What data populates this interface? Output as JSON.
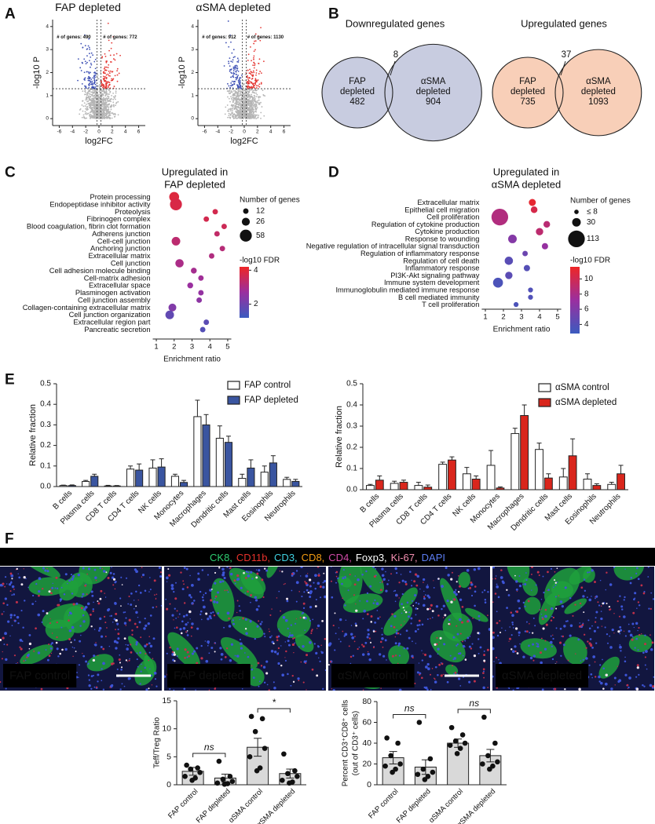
{
  "panel_labels": [
    "A",
    "B",
    "C",
    "D",
    "E",
    "F"
  ],
  "chart_data": [
    {
      "type": "volcano",
      "title": "FAP depleted",
      "xlabel": "log2FC",
      "ylabel": "-log10 P",
      "xlim": [
        -7,
        7
      ],
      "xticks": [
        -6,
        -4,
        -2,
        0,
        2,
        4,
        6
      ],
      "ylim": [
        -0.3,
        4.3
      ],
      "yticks": [
        0,
        1,
        2,
        3,
        4
      ],
      "x_thresholds": [
        -0.3,
        0.3
      ],
      "y_threshold": 1.3,
      "annotations": [
        "# of genes: 490",
        "# of genes: 772"
      ],
      "colors": {
        "down": "#3f51b5",
        "up": "#e53935",
        "unchanged": "#b5b5b5"
      }
    },
    {
      "type": "volcano",
      "title": "αSMA depleted",
      "xlabel": "log2FC",
      "ylabel": "-log10 P",
      "xlim": [
        -7,
        7
      ],
      "xticks": [
        -6,
        -4,
        -2,
        0,
        2,
        4,
        6
      ],
      "ylim": [
        -0.3,
        4.3
      ],
      "yticks": [
        0,
        1,
        2,
        3,
        4
      ],
      "x_thresholds": [
        -0.3,
        0.3
      ],
      "y_threshold": 1.3,
      "annotations": [
        "# of genes: 912",
        "# of genes: 1130"
      ],
      "colors": {
        "down": "#3f51b5",
        "up": "#e53935",
        "unchanged": "#b5b5b5"
      }
    },
    {
      "type": "venn",
      "title": "Downregulated genes",
      "sets": [
        {
          "name_lines": [
            "FAP",
            "depleted"
          ],
          "value": 482
        },
        {
          "name_lines": [
            "αSMA",
            "depleted"
          ],
          "value": 904
        }
      ],
      "overlap": 8,
      "color": "#c8cce0"
    },
    {
      "type": "venn",
      "title": "Upregulated genes",
      "sets": [
        {
          "name_lines": [
            "FAP",
            "depleted"
          ],
          "value": 735
        },
        {
          "name_lines": [
            "αSMA",
            "depleted"
          ],
          "value": 1093
        }
      ],
      "overlap": 37,
      "color": "#f8cfb8"
    },
    {
      "type": "bubble",
      "title_lines": [
        "Upregulated in",
        "FAP depleted"
      ],
      "categories": [
        "Protein processing",
        "Endopeptidase inhibitor activity",
        "Proteolysis",
        "Fibrinogen complex",
        "Blood coagulation, fibrin clot formation",
        "Adherens junction",
        "Cell-cell junction",
        "Anchoring junction",
        "Extracellular matrix",
        "Cell junction",
        "Cell adhesion molecule binding",
        "Cell-matrix adhesion",
        "Extracellular space",
        "Plasminogen activation",
        "Cell junction assembly",
        "Collagen-containing extracellular matrix",
        "Cell junction organization",
        "Extracellular region part",
        "Pancreatic secretion"
      ],
      "x": [
        2.0,
        2.1,
        4.3,
        3.8,
        4.8,
        4.4,
        2.1,
        4.7,
        4.1,
        2.3,
        3.1,
        3.5,
        2.9,
        3.5,
        3.4,
        1.9,
        1.75,
        3.8,
        3.6
      ],
      "sizes": [
        40,
        58,
        12,
        12,
        12,
        12,
        30,
        12,
        12,
        28,
        14,
        12,
        14,
        12,
        12,
        25,
        30,
        12,
        12
      ],
      "fdr": [
        3.9,
        3.8,
        3.7,
        3.7,
        3.6,
        3.4,
        3.3,
        3.2,
        3.1,
        3.0,
        2.9,
        2.8,
        2.7,
        2.6,
        2.5,
        2.3,
        1.8,
        1.7,
        1.6
      ],
      "xlabel": "Enrichment ratio",
      "xlim": [
        0.8,
        5.2
      ],
      "xticks": [
        1,
        2,
        3,
        4,
        5
      ],
      "size_legend": {
        "title": "Number of genes",
        "ticks": [
          12,
          26,
          58
        ]
      },
      "color_legend": {
        "title": "-log10 FDR",
        "lim": [
          1.2,
          4.2
        ],
        "ticks": [
          2,
          4
        ]
      },
      "colormap": [
        "#3b5bbf",
        "#9a2f9f",
        "#ee2626"
      ]
    },
    {
      "type": "bubble",
      "title_lines": [
        "Upregulated in",
        "αSMA depleted"
      ],
      "categories": [
        "Extracellular matrix",
        "Epithelial cell migration",
        "Cell proliferation",
        "Regulation of cytokine production",
        "Cytokine production",
        "Response to wounding",
        "Negative regulation of intracellular signal transduction",
        "Regulation of inflammatory response",
        "Regulation of cell death",
        "Inflammatory response",
        "PI3K-Akt signaling pathway",
        "Immune system development",
        "Immunoglobulin mediated immune response",
        "B cell mediated immunity",
        "T cell proliferation"
      ],
      "x": [
        3.6,
        3.7,
        1.8,
        4.4,
        4.0,
        2.5,
        4.3,
        3.2,
        2.3,
        3.3,
        2.3,
        1.7,
        3.5,
        3.5,
        2.7
      ],
      "sizes": [
        20,
        18,
        113,
        18,
        22,
        30,
        16,
        12,
        28,
        16,
        22,
        40,
        10,
        10,
        10
      ],
      "fdr": [
        11.2,
        10.3,
        8.4,
        8.8,
        9.0,
        6.2,
        7.0,
        5.0,
        4.2,
        4.0,
        4.3,
        3.6,
        3.8,
        3.8,
        3.6
      ],
      "xlabel": "Enrichment ratio",
      "xlim": [
        0.8,
        5.2
      ],
      "xticks": [
        1,
        2,
        3,
        4,
        5
      ],
      "size_legend": {
        "title": "Number of genes",
        "ticks": [
          {
            "value": 8,
            "label": "≤ 8"
          },
          30,
          113
        ]
      },
      "color_legend": {
        "title": "-log10 FDR",
        "lim": [
          2.8,
          11.6
        ],
        "ticks": [
          4,
          6,
          8,
          10
        ]
      },
      "colormap": [
        "#3b5bbf",
        "#9a2f9f",
        "#ee2626"
      ]
    },
    {
      "type": "bar",
      "ylabel": "Relative fraction",
      "categories": [
        "B cells",
        "Plasma cells",
        "CD8 T cells",
        "CD4 T cells",
        "NK cells",
        "Monocytes",
        "Macrophages",
        "Dendritic cells",
        "Mast cells",
        "Eosinophils",
        "Neutrophils"
      ],
      "ylim": [
        0,
        0.5
      ],
      "yticks": [
        {
          "value": 0,
          "label": "0.0"
        },
        0.1,
        0.2,
        0.3,
        0.4,
        0.5
      ],
      "legend": "upper right",
      "series": [
        {
          "name": "FAP control",
          "color": "#ffffff",
          "values": [
            0.005,
            0.025,
            0.003,
            0.085,
            0.09,
            0.05,
            0.34,
            0.235,
            0.04,
            0.07,
            0.035
          ],
          "errors": [
            0.002,
            0.005,
            0.003,
            0.015,
            0.04,
            0.01,
            0.08,
            0.06,
            0.02,
            0.03,
            0.01
          ]
        },
        {
          "name": "FAP depleted",
          "color": "#3a55a0",
          "values": [
            0.005,
            0.05,
            0.003,
            0.08,
            0.095,
            0.02,
            0.3,
            0.215,
            0.09,
            0.115,
            0.025
          ],
          "errors": [
            0.003,
            0.01,
            0.002,
            0.03,
            0.04,
            0.01,
            0.05,
            0.03,
            0.04,
            0.035,
            0.01
          ]
        }
      ]
    },
    {
      "type": "bar",
      "ylabel": "Relative fraction",
      "categories": [
        "B cells",
        "Plasma cells",
        "CD8 T cells",
        "CD4 T cells",
        "NK cells",
        "Monocytes",
        "Macrophages",
        "Dendritic cells",
        "Mast cells",
        "Eosinophils",
        "Neutrophils"
      ],
      "ylim": [
        0,
        0.5
      ],
      "yticks": [
        {
          "value": 0,
          "label": "0.0"
        },
        0.1,
        0.2,
        0.3,
        0.4,
        0.5
      ],
      "legend": "upper right",
      "series": [
        {
          "name": "αSMA control",
          "color": "#ffffff",
          "values": [
            0.02,
            0.03,
            0.02,
            0.12,
            0.075,
            0.115,
            0.265,
            0.19,
            0.06,
            0.05,
            0.025
          ],
          "errors": [
            0.005,
            0.01,
            0.015,
            0.01,
            0.03,
            0.07,
            0.025,
            0.03,
            0.04,
            0.025,
            0.01
          ]
        },
        {
          "name": "αSMA depleted",
          "color": "#d9261c",
          "values": [
            0.045,
            0.035,
            0.012,
            0.14,
            0.05,
            0.008,
            0.35,
            0.055,
            0.16,
            0.02,
            0.075
          ],
          "errors": [
            0.02,
            0.01,
            0.01,
            0.015,
            0.015,
            0.005,
            0.05,
            0.02,
            0.08,
            0.008,
            0.04
          ]
        }
      ]
    },
    {
      "type": "dot-bar",
      "ylabel_lines": [
        "Teff/Treg Ratio"
      ],
      "categories": [
        "FAP control",
        "FAP depleted",
        "αSMA control",
        "αSMA depleted"
      ],
      "ylim": [
        0,
        15
      ],
      "yticks": [
        0,
        5,
        10,
        15
      ],
      "values": [
        2.4,
        1.2,
        6.7,
        2.0
      ],
      "errors": [
        0.7,
        0.7,
        1.6,
        0.8
      ],
      "points": [
        [
          3.5,
          3.0,
          2.8,
          2.2,
          1.5,
          1.2,
          0.8
        ],
        [
          4.2,
          1.5,
          1.0,
          0.6,
          0.3,
          0.2,
          0.1
        ],
        [
          12.2,
          11.8,
          9.5,
          6.5,
          5.0,
          3.0,
          2.5
        ],
        [
          5.5,
          2.5,
          2.0,
          1.5,
          0.8,
          0.5,
          0.3
        ]
      ],
      "annotations": [
        "ns",
        "*"
      ],
      "color": "#d9d9d9"
    },
    {
      "type": "dot-bar",
      "ylabel_lines": [
        "Percent CD3⁺CD8⁺ cells",
        "(out of CD3⁺ cells)"
      ],
      "categories": [
        "FAP control",
        "FAP depleted",
        "αSMA control",
        "αSMA depleted"
      ],
      "ylim": [
        0,
        80
      ],
      "yticks": [
        0,
        20,
        40,
        60,
        80
      ],
      "values": [
        26,
        17,
        40,
        28
      ],
      "errors": [
        6,
        7,
        4,
        6
      ],
      "points": [
        [
          45,
          40,
          28,
          20,
          18,
          15,
          12
        ],
        [
          60,
          25,
          15,
          12,
          10,
          8,
          5
        ],
        [
          55,
          48,
          42,
          40,
          38,
          35,
          30
        ],
        [
          65,
          40,
          28,
          22,
          20,
          18,
          15
        ]
      ],
      "annotations": [
        "ns",
        "ns"
      ],
      "color": "#d9d9d9"
    }
  ],
  "figure_f": {
    "channels": [
      {
        "name": "CK8,",
        "color": "#2ecc71"
      },
      {
        "name": "CD11b,",
        "color": "#e8322c"
      },
      {
        "name": "CD3,",
        "color": "#3fd0e0"
      },
      {
        "name": "CD8,",
        "color": "#f39c12"
      },
      {
        "name": "CD4,",
        "color": "#d04aa8"
      },
      {
        "name": "Foxp3,",
        "color": "#ffffff"
      },
      {
        "name": "Ki-67,",
        "color": "#f48fb1"
      },
      {
        "name": "DAPI",
        "color": "#5b7cf0"
      }
    ],
    "images": [
      "FAP control",
      "FAP depleted",
      "αSMA control",
      "αSMA depleted"
    ]
  }
}
